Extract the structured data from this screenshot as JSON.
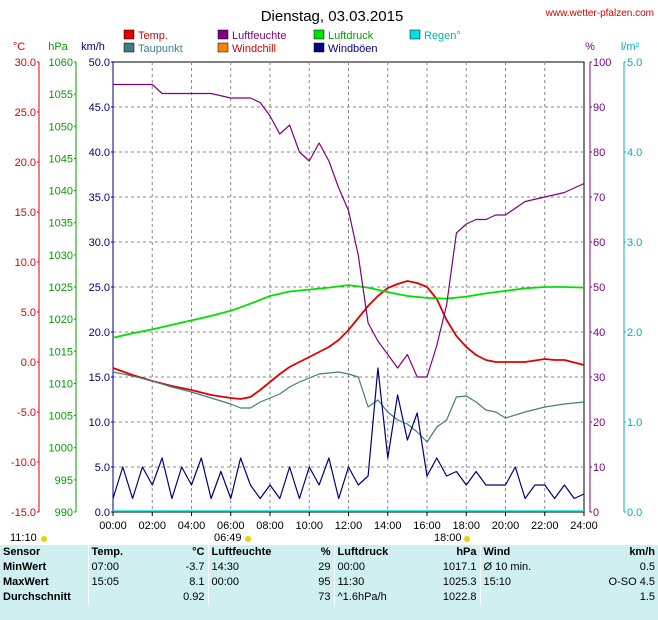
{
  "title": "Dienstag, 03.03.2015",
  "website": "www.wetter-pfalzen.com",
  "legend": [
    {
      "label": "Temp.",
      "color": "#e00000"
    },
    {
      "label": "Luftfeuchte",
      "color": "#800080"
    },
    {
      "label": "Luftdruck",
      "color": "#00e000"
    },
    {
      "label": "Regen°",
      "color": "#00e0e0"
    },
    {
      "label": "Taupunkt",
      "color": "#3f7f7f"
    },
    {
      "label": "Windchill",
      "color": "#ff8000"
    },
    {
      "label": "Windböen",
      "color": "#000080"
    }
  ],
  "axis_units": {
    "temp": "°C",
    "pressure": "hPa",
    "wind": "km/h",
    "humidity": "%",
    "rain": "l/m²"
  },
  "sun": {
    "rise_label": "06:49",
    "set_label": "18:00",
    "left_label": "11:10"
  },
  "chart_data": {
    "type": "line",
    "x_unit": "hour",
    "xlim": [
      0,
      24
    ],
    "x_ticks": [
      "00:00",
      "02:00",
      "04:00",
      "06:00",
      "08:00",
      "10:00",
      "12:00",
      "14:00",
      "16:00",
      "18:00",
      "20:00",
      "22:00",
      "24:00"
    ],
    "axes": {
      "temp": {
        "label": "°C",
        "lim": [
          -15,
          30
        ],
        "ticks": [
          "30.0",
          "25.0",
          "20.0",
          "15.0",
          "10.0",
          "5.0",
          "0.0",
          "-5.0",
          "-10.0",
          "-15.0"
        ]
      },
      "pressure": {
        "label": "hPa",
        "lim": [
          990,
          1060
        ],
        "ticks": [
          "1060",
          "1055",
          "1050",
          "1045",
          "1040",
          "1035",
          "1030",
          "1025",
          "1020",
          "1015",
          "1010",
          "1005",
          "1000",
          "995",
          "990"
        ]
      },
      "wind": {
        "label": "km/h",
        "lim": [
          0,
          50
        ],
        "ticks": [
          "50.0",
          "45.0",
          "40.0",
          "35.0",
          "30.0",
          "25.0",
          "20.0",
          "15.0",
          "10.0",
          "5.0",
          "0.0"
        ]
      },
      "humidity": {
        "label": "%",
        "lim": [
          0,
          100
        ],
        "ticks": [
          "100",
          "90",
          "80",
          "70",
          "60",
          "50",
          "40",
          "30",
          "20",
          "10",
          "0"
        ]
      },
      "rain": {
        "label": "l/m²",
        "lim": [
          0,
          5
        ],
        "ticks": [
          "5.0",
          "4.0",
          "3.0",
          "2.0",
          "1.0",
          "0.0"
        ]
      }
    },
    "series": [
      {
        "name": "Temp.",
        "axis": "temp",
        "color": "#e00000",
        "x": [
          0,
          1,
          2,
          3,
          4,
          5,
          6,
          6.5,
          7,
          7.5,
          8,
          8.5,
          9,
          9.5,
          10,
          10.5,
          11,
          11.5,
          12,
          12.5,
          13,
          13.5,
          14,
          14.5,
          15,
          15.5,
          16,
          16.5,
          17,
          17.5,
          18,
          18.5,
          19,
          19.5,
          20,
          21,
          22,
          22.5,
          23,
          24
        ],
        "y": [
          -0.6,
          -1.3,
          -1.9,
          -2.4,
          -2.8,
          -3.3,
          -3.6,
          -3.7,
          -3.5,
          -2.8,
          -2.0,
          -1.2,
          -0.5,
          0.0,
          0.5,
          1.0,
          1.5,
          2.2,
          3.2,
          4.4,
          5.6,
          6.6,
          7.4,
          7.8,
          8.1,
          7.9,
          7.5,
          6.3,
          4.2,
          2.6,
          1.5,
          0.7,
          0.2,
          0.0,
          0.0,
          0.0,
          0.3,
          0.2,
          0.2,
          -0.3
        ]
      },
      {
        "name": "Taupunkt",
        "axis": "temp",
        "color": "#3f7f7f",
        "x": [
          0,
          1,
          2,
          3,
          4,
          5,
          6,
          6.5,
          7,
          7.5,
          8,
          8.5,
          9,
          9.5,
          10,
          10.5,
          11,
          11.5,
          12,
          12.5,
          13,
          13.5,
          14,
          14.5,
          15,
          15.5,
          16,
          16.5,
          17,
          17.5,
          18,
          18.5,
          19,
          19.5,
          20,
          21,
          22,
          23,
          24
        ],
        "y": [
          -1.0,
          -1.4,
          -1.9,
          -2.5,
          -3.0,
          -3.6,
          -4.2,
          -4.6,
          -4.6,
          -4.0,
          -3.6,
          -3.2,
          -2.5,
          -2.0,
          -1.6,
          -1.2,
          -1.1,
          -1.0,
          -1.2,
          -1.5,
          -4.5,
          -3.8,
          -5.0,
          -5.8,
          -6.2,
          -7.0,
          -8.0,
          -6.5,
          -5.8,
          -3.5,
          -3.4,
          -4.0,
          -4.8,
          -5.0,
          -5.6,
          -5.0,
          -4.5,
          -4.2,
          -4.0
        ]
      },
      {
        "name": "Luftdruck",
        "axis": "pressure",
        "color": "#00e000",
        "x": [
          0,
          1,
          2,
          3,
          4,
          5,
          6,
          7,
          8,
          9,
          10,
          11,
          12,
          13,
          14,
          15,
          16,
          17,
          18,
          19,
          20,
          21,
          22,
          23,
          24
        ],
        "y": [
          1017.1,
          1017.8,
          1018.4,
          1019.1,
          1019.8,
          1020.5,
          1021.3,
          1022.4,
          1023.6,
          1024.3,
          1024.6,
          1024.9,
          1025.3,
          1024.9,
          1024.2,
          1023.6,
          1023.3,
          1023.2,
          1023.5,
          1024.0,
          1024.4,
          1024.8,
          1025.0,
          1025.0,
          1024.9
        ]
      },
      {
        "name": "Luftfeuchte",
        "axis": "humidity",
        "color": "#800080",
        "x": [
          0,
          1,
          2,
          2.5,
          3,
          4,
          5,
          6,
          7,
          7.5,
          8,
          8.5,
          9,
          9.5,
          10,
          10.5,
          11,
          11.5,
          12,
          12.5,
          13,
          13.5,
          14,
          14.5,
          15,
          15.5,
          16,
          16.5,
          17,
          17.5,
          18,
          18.5,
          19,
          19.5,
          20,
          21,
          22,
          23,
          24
        ],
        "y": [
          95,
          95,
          95,
          93,
          93,
          93,
          93,
          92,
          92,
          91,
          88,
          84,
          86,
          80,
          78,
          82,
          78,
          72,
          67,
          57,
          42,
          38,
          35,
          32,
          35,
          30,
          30,
          37,
          46,
          62,
          64,
          65,
          65,
          66,
          66,
          69,
          70,
          71,
          73
        ]
      },
      {
        "name": "Windböen",
        "axis": "wind",
        "color": "#000080",
        "x": [
          0,
          0.5,
          1,
          1.5,
          2,
          2.5,
          3,
          3.5,
          4,
          4.5,
          5,
          5.5,
          6,
          6.5,
          7,
          7.5,
          8,
          8.5,
          9,
          9.5,
          10,
          10.5,
          11,
          11.5,
          12,
          12.5,
          13,
          13.5,
          14,
          14.5,
          15,
          15.5,
          16,
          16.5,
          17,
          17.5,
          18,
          18.5,
          19,
          19.5,
          20,
          20.5,
          21,
          21.5,
          22,
          22.5,
          23,
          23.5,
          24
        ],
        "y": [
          1.5,
          5,
          1.5,
          5,
          3,
          6,
          1.5,
          5,
          3,
          6,
          1.5,
          4.5,
          1.5,
          6,
          3,
          1.5,
          3,
          1.5,
          5,
          1.5,
          5,
          3,
          6,
          1.5,
          5,
          3,
          4,
          16,
          6,
          13,
          8,
          11,
          4,
          6,
          4,
          4.5,
          3,
          4.5,
          3,
          3,
          3,
          5,
          1.5,
          3,
          3,
          1.5,
          3,
          1.5,
          2
        ]
      }
    ]
  },
  "stats": {
    "headers": {
      "sensor": "Sensor",
      "temp": "Temp.",
      "temp_unit": "°C",
      "hum": "Luftfeuchte",
      "hum_unit": "%",
      "pres": "Luftdruck",
      "pres_unit": "hPa",
      "wind": "Wind",
      "wind_unit": "km/h"
    },
    "rows": [
      {
        "label": "MinWert",
        "temp_time": "07:00",
        "temp_val": "-3.7",
        "hum_time": "14:30",
        "hum_val": "29",
        "pres_time": "00:00",
        "pres_val": "1017.1",
        "wind_time": "Ø 10 min.",
        "wind_val": "0.5"
      },
      {
        "label": "MaxWert",
        "temp_time": "15:05",
        "temp_val": "8.1",
        "hum_time": "00:00",
        "hum_val": "95",
        "pres_time": "11:30",
        "pres_val": "1025.3",
        "wind_time": "15:10",
        "wind_val": "O-SO 4.5"
      },
      {
        "label": "Durchschnitt",
        "temp_time": "",
        "temp_val": "0.92",
        "hum_time": "",
        "hum_val": "73",
        "pres_time": "^1.6hPa/h",
        "pres_val": "1022.8",
        "wind_time": "",
        "wind_val": "1.5"
      }
    ]
  }
}
